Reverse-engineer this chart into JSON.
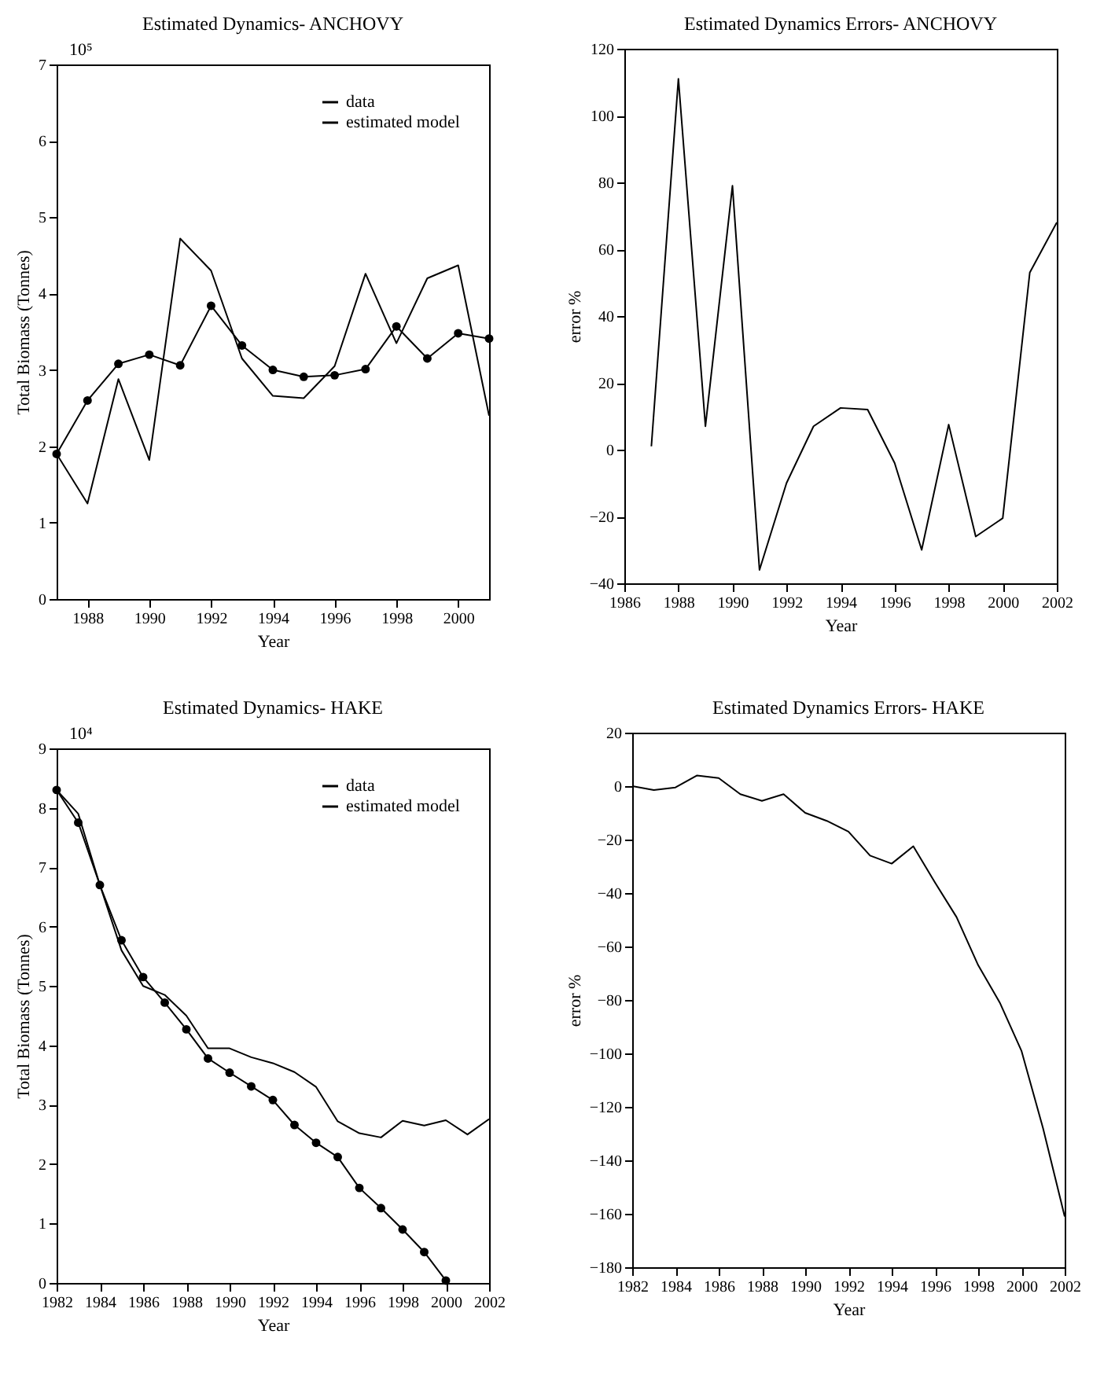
{
  "chart_data": [
    {
      "type": "line",
      "title": "Estimated Dynamics- ANCHOVY",
      "xlabel": "Year",
      "ylabel": "Total Biomass (Tonnes)",
      "annotations": [
        "10⁵"
      ],
      "x": [
        1987,
        1988,
        1989,
        1990,
        1991,
        1992,
        1993,
        1994,
        1995,
        1996,
        1997,
        1998,
        1999,
        2000,
        2001
      ],
      "series": [
        {
          "name": "data",
          "color": "#000000",
          "marker": "none",
          "values": [
            1.9,
            1.25,
            2.88,
            1.82,
            4.72,
            4.3,
            3.15,
            2.66,
            2.63,
            3.05,
            4.26,
            3.35,
            4.2,
            4.37,
            2.4
          ]
        },
        {
          "name": "estimated model",
          "color": "#000000",
          "marker": "circle",
          "values": [
            1.9,
            2.6,
            3.08,
            3.2,
            3.06,
            3.84,
            3.32,
            3.0,
            2.91,
            2.93,
            3.01,
            3.57,
            3.15,
            3.48,
            3.41
          ]
        }
      ],
      "xlim": [
        1987,
        2001
      ],
      "xticks": [
        1988,
        1990,
        1992,
        1994,
        1996,
        1998,
        2000
      ],
      "ylim": [
        0,
        7
      ],
      "yticks": [
        0,
        1,
        2,
        3,
        4,
        5,
        6,
        7
      ],
      "legend": "top right"
    },
    {
      "type": "line",
      "title": "Estimated Dynamics Errors- ANCHOVY",
      "xlabel": "Year",
      "ylabel": "error %",
      "x": [
        1987,
        1988,
        1989,
        1990,
        1991,
        1992,
        1993,
        1994,
        1995,
        1996,
        1997,
        1998,
        1999,
        2000,
        2001,
        2002
      ],
      "series": [
        {
          "color": "#000000",
          "values": [
            1,
            111,
            7,
            79,
            -36,
            -10,
            7,
            12.5,
            12,
            -4,
            -30,
            7.5,
            -26,
            -20.5,
            53,
            68
          ]
        }
      ],
      "xlim": [
        1986,
        2002
      ],
      "xticks": [
        1986,
        1988,
        1990,
        1992,
        1994,
        1996,
        1998,
        2000,
        2002
      ],
      "ylim": [
        -40,
        120
      ],
      "yticks": [
        -40,
        -20,
        0,
        20,
        40,
        60,
        80,
        100,
        120
      ]
    },
    {
      "type": "line",
      "title": "Estimated Dynamics- HAKE",
      "xlabel": "Year",
      "ylabel": "Total Biomass (Tonnes)",
      "annotations": [
        "10⁴"
      ],
      "x": [
        1982,
        1983,
        1984,
        1985,
        1986,
        1987,
        1988,
        1989,
        1990,
        1991,
        1992,
        1993,
        1994,
        1995,
        1996,
        1997,
        1998,
        1999,
        2000,
        2001,
        2002
      ],
      "series": [
        {
          "name": "data",
          "color": "#000000",
          "marker": "none",
          "values": [
            8.3,
            7.9,
            6.7,
            5.6,
            5.0,
            4.85,
            4.5,
            3.95,
            3.95,
            3.8,
            3.7,
            3.55,
            3.3,
            2.72,
            2.52,
            2.45,
            2.73,
            2.65,
            2.74,
            2.5,
            2.76
          ]
        },
        {
          "name": "estimated model",
          "color": "#000000",
          "marker": "circle",
          "values": [
            8.3,
            7.75,
            6.7,
            5.77,
            5.15,
            4.72,
            4.27,
            3.78,
            3.54,
            3.31,
            3.08,
            2.66,
            2.36,
            2.12,
            1.6,
            1.26,
            0.9,
            0.52,
            0.04,
            null,
            null
          ]
        }
      ],
      "xlim": [
        1982,
        2002
      ],
      "xticks": [
        1982,
        1984,
        1986,
        1988,
        1990,
        1992,
        1994,
        1996,
        1998,
        2000,
        2002
      ],
      "ylim": [
        0,
        9
      ],
      "yticks": [
        0,
        1,
        2,
        3,
        4,
        5,
        6,
        7,
        8,
        9
      ],
      "legend": "top right"
    },
    {
      "type": "line",
      "title": "Estimated Dynamics Errors- HAKE",
      "xlabel": "Year",
      "ylabel": "error %",
      "x": [
        1982,
        1983,
        1984,
        1985,
        1986,
        1987,
        1988,
        1989,
        1990,
        1991,
        1992,
        1993,
        1994,
        1995,
        1996,
        1997,
        1998,
        1999,
        2000,
        2001,
        2002
      ],
      "series": [
        {
          "color": "#000000",
          "values": [
            0,
            -1.5,
            -0.5,
            4,
            3,
            -3,
            -5.5,
            -3,
            -10,
            -13,
            -17,
            -26,
            -29,
            -22.5,
            -36,
            -49,
            -67,
            -81,
            -99,
            -128,
            -161
          ]
        }
      ],
      "xlim": [
        1982,
        2002
      ],
      "xticks": [
        1982,
        1984,
        1986,
        1988,
        1990,
        1992,
        1994,
        1996,
        1998,
        2000,
        2002
      ],
      "ylim": [
        -180,
        20
      ],
      "yticks": [
        -180,
        -160,
        -140,
        -120,
        -100,
        -80,
        -60,
        -40,
        -20,
        0,
        20
      ]
    }
  ]
}
